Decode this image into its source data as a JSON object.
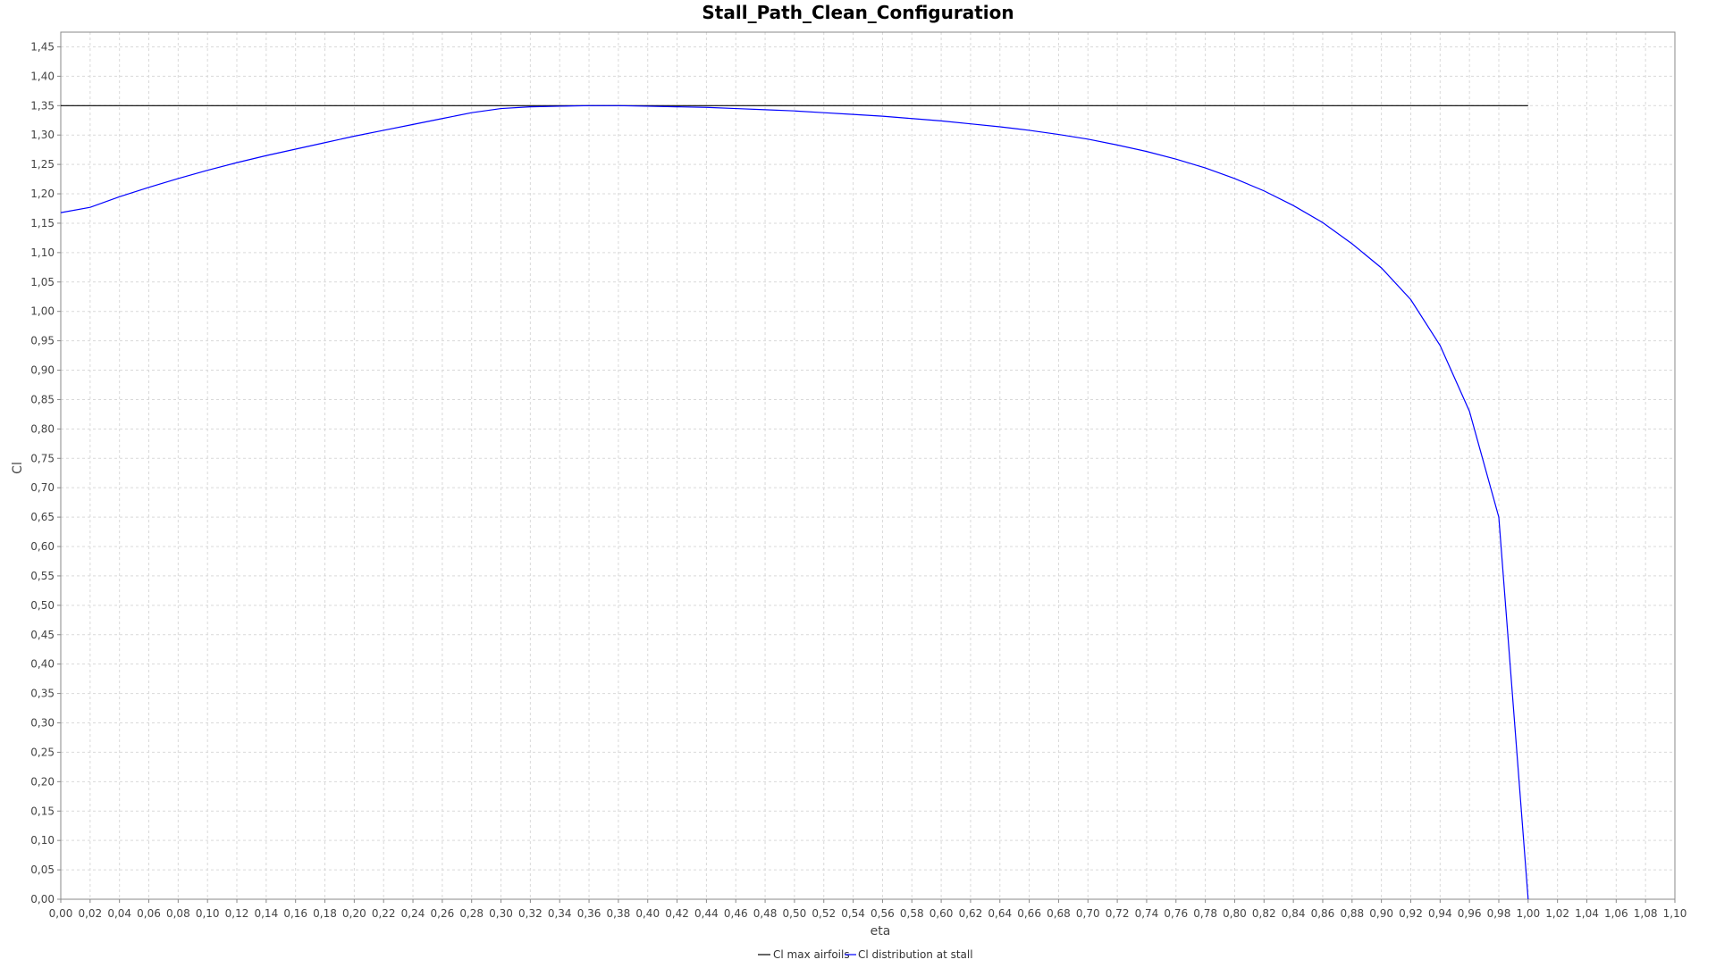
{
  "chart_data": {
    "type": "line",
    "title": "Stall_Path_Clean_Configuration",
    "xlabel": "eta",
    "ylabel": "Cl",
    "xlim": [
      0.0,
      1.1
    ],
    "ylim": [
      0.0,
      1.475
    ],
    "xtick_step": 0.02,
    "ytick_step": 0.05,
    "decimal_separator": ",",
    "grid": true,
    "legend_position": "bottom-center",
    "series": [
      {
        "name": "Cl max airfoils",
        "color": "#000000",
        "x": [
          0.0,
          1.0
        ],
        "y": [
          1.35,
          1.35
        ]
      },
      {
        "name": "Cl distribution at stall",
        "color": "#0000ff",
        "x": [
          0.0,
          0.02,
          0.04,
          0.06,
          0.08,
          0.1,
          0.12,
          0.14,
          0.16,
          0.18,
          0.2,
          0.22,
          0.24,
          0.26,
          0.28,
          0.3,
          0.32,
          0.34,
          0.36,
          0.38,
          0.4,
          0.42,
          0.44,
          0.46,
          0.48,
          0.5,
          0.52,
          0.54,
          0.56,
          0.58,
          0.6,
          0.62,
          0.64,
          0.66,
          0.68,
          0.7,
          0.72,
          0.74,
          0.76,
          0.78,
          0.8,
          0.82,
          0.84,
          0.86,
          0.88,
          0.9,
          0.92,
          0.94,
          0.96,
          0.98,
          1.0
        ],
        "y": [
          1.168,
          1.177,
          1.195,
          1.211,
          1.226,
          1.24,
          1.253,
          1.265,
          1.276,
          1.287,
          1.298,
          1.308,
          1.318,
          1.328,
          1.338,
          1.345,
          1.348,
          1.349,
          1.35,
          1.35,
          1.349,
          1.348,
          1.347,
          1.345,
          1.343,
          1.341,
          1.338,
          1.335,
          1.332,
          1.328,
          1.324,
          1.319,
          1.314,
          1.308,
          1.301,
          1.293,
          1.283,
          1.272,
          1.259,
          1.244,
          1.226,
          1.205,
          1.18,
          1.151,
          1.115,
          1.074,
          1.02,
          0.942,
          0.83,
          0.65,
          0.0
        ]
      }
    ]
  }
}
